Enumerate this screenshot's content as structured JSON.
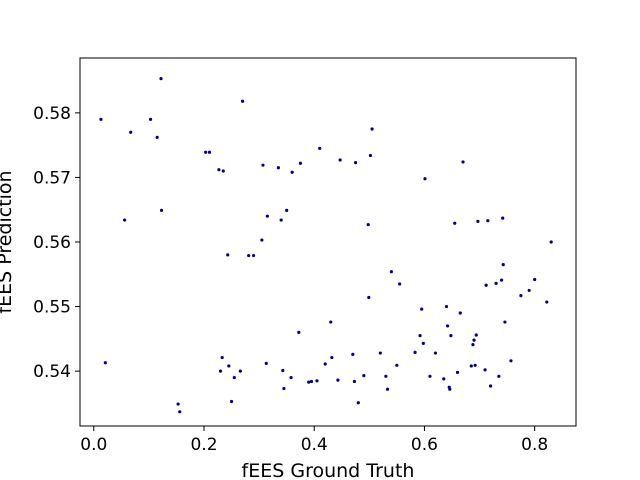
{
  "chart_data": {
    "type": "scatter",
    "xlabel": "fEES Ground Truth",
    "ylabel": "fEES Prediction",
    "xlim": [
      -0.025,
      0.875
    ],
    "ylim": [
      0.5315,
      0.5885
    ],
    "xticks": [
      0.0,
      0.2,
      0.4,
      0.6,
      0.8
    ],
    "xtick_labels": [
      "0.0",
      "0.2",
      "0.4",
      "0.6",
      "0.8"
    ],
    "yticks": [
      0.54,
      0.55,
      0.56,
      0.57,
      0.58
    ],
    "ytick_labels": [
      "0.54",
      "0.55",
      "0.56",
      "0.57",
      "0.58"
    ],
    "grid": false,
    "marker_color": "#00008b",
    "points": [
      [
        0.013,
        0.579
      ],
      [
        0.021,
        0.5413
      ],
      [
        0.056,
        0.5634
      ],
      [
        0.067,
        0.577
      ],
      [
        0.103,
        0.579
      ],
      [
        0.115,
        0.5762
      ],
      [
        0.122,
        0.5853
      ],
      [
        0.123,
        0.5649
      ],
      [
        0.153,
        0.5349
      ],
      [
        0.156,
        0.5337
      ],
      [
        0.203,
        0.5739
      ],
      [
        0.21,
        0.5739
      ],
      [
        0.227,
        0.5712
      ],
      [
        0.23,
        0.54
      ],
      [
        0.233,
        0.5421
      ],
      [
        0.235,
        0.571
      ],
      [
        0.243,
        0.558
      ],
      [
        0.245,
        0.5408
      ],
      [
        0.25,
        0.5353
      ],
      [
        0.255,
        0.539
      ],
      [
        0.266,
        0.54
      ],
      [
        0.27,
        0.5818
      ],
      [
        0.281,
        0.5579
      ],
      [
        0.29,
        0.5579
      ],
      [
        0.305,
        0.5603
      ],
      [
        0.307,
        0.5719
      ],
      [
        0.313,
        0.5412
      ],
      [
        0.315,
        0.564
      ],
      [
        0.335,
        0.5715
      ],
      [
        0.34,
        0.5634
      ],
      [
        0.343,
        0.5401
      ],
      [
        0.345,
        0.5373
      ],
      [
        0.35,
        0.5649
      ],
      [
        0.358,
        0.539
      ],
      [
        0.36,
        0.5708
      ],
      [
        0.372,
        0.546
      ],
      [
        0.375,
        0.5722
      ],
      [
        0.39,
        0.5383
      ],
      [
        0.395,
        0.5384
      ],
      [
        0.405,
        0.5385
      ],
      [
        0.41,
        0.5745
      ],
      [
        0.42,
        0.5411
      ],
      [
        0.43,
        0.5476
      ],
      [
        0.432,
        0.5421
      ],
      [
        0.443,
        0.5386
      ],
      [
        0.447,
        0.5727
      ],
      [
        0.47,
        0.5426
      ],
      [
        0.473,
        0.5384
      ],
      [
        0.475,
        0.5723
      ],
      [
        0.48,
        0.5351
      ],
      [
        0.49,
        0.5393
      ],
      [
        0.498,
        0.5627
      ],
      [
        0.499,
        0.5514
      ],
      [
        0.502,
        0.5734
      ],
      [
        0.505,
        0.5775
      ],
      [
        0.52,
        0.5428
      ],
      [
        0.53,
        0.5392
      ],
      [
        0.533,
        0.5372
      ],
      [
        0.54,
        0.5554
      ],
      [
        0.55,
        0.5409
      ],
      [
        0.555,
        0.5535
      ],
      [
        0.583,
        0.5429
      ],
      [
        0.592,
        0.5455
      ],
      [
        0.595,
        0.5496
      ],
      [
        0.598,
        0.5443
      ],
      [
        0.601,
        0.5698
      ],
      [
        0.61,
        0.5392
      ],
      [
        0.62,
        0.5428
      ],
      [
        0.635,
        0.5388
      ],
      [
        0.64,
        0.55
      ],
      [
        0.642,
        0.547
      ],
      [
        0.645,
        0.5375
      ],
      [
        0.646,
        0.5372
      ],
      [
        0.648,
        0.5455
      ],
      [
        0.655,
        0.5629
      ],
      [
        0.66,
        0.5398
      ],
      [
        0.665,
        0.549
      ],
      [
        0.67,
        0.5724
      ],
      [
        0.685,
        0.5408
      ],
      [
        0.688,
        0.5441
      ],
      [
        0.69,
        0.5448
      ],
      [
        0.692,
        0.5409
      ],
      [
        0.694,
        0.5456
      ],
      [
        0.697,
        0.5632
      ],
      [
        0.71,
        0.5402
      ],
      [
        0.712,
        0.5533
      ],
      [
        0.715,
        0.5633
      ],
      [
        0.72,
        0.5377
      ],
      [
        0.73,
        0.5536
      ],
      [
        0.735,
        0.5392
      ],
      [
        0.74,
        0.5541
      ],
      [
        0.742,
        0.5637
      ],
      [
        0.743,
        0.5565
      ],
      [
        0.746,
        0.5476
      ],
      [
        0.757,
        0.5416
      ],
      [
        0.775,
        0.5517
      ],
      [
        0.79,
        0.5525
      ],
      [
        0.8,
        0.5542
      ],
      [
        0.822,
        0.5507
      ],
      [
        0.83,
        0.56
      ]
    ]
  }
}
